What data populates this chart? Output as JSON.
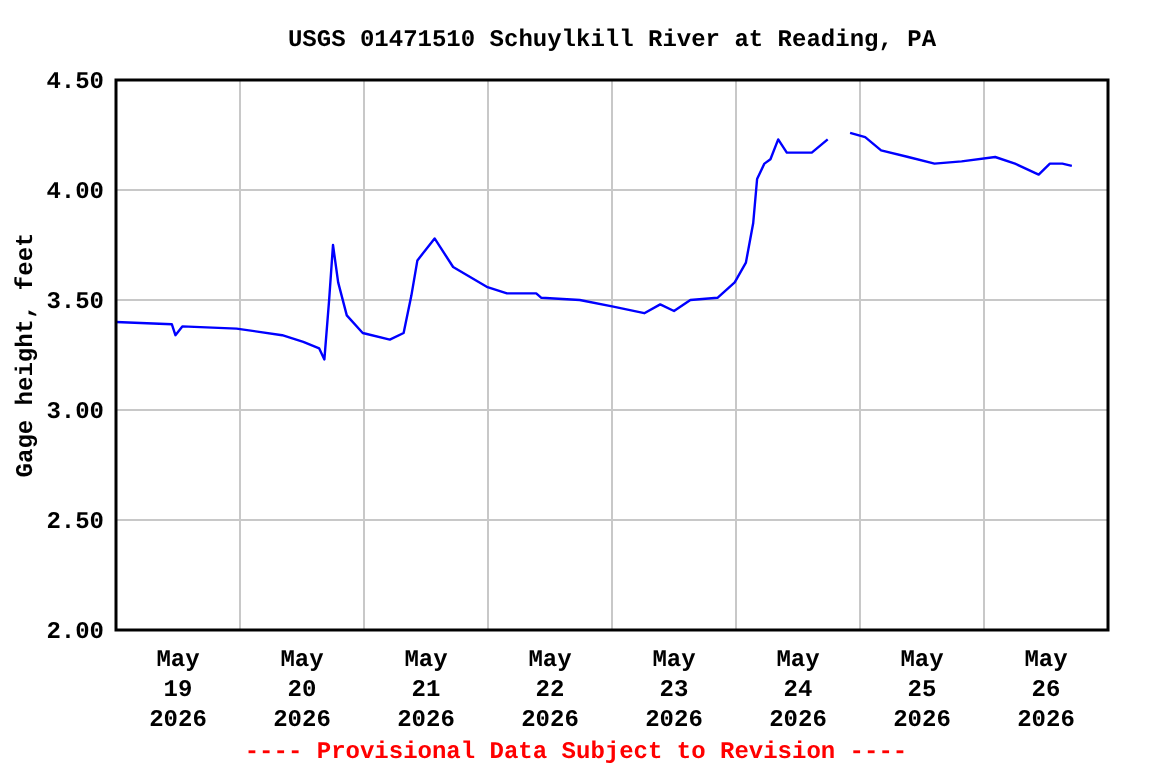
{
  "chart_data": {
    "type": "line",
    "title": "USGS 01471510 Schuylkill River at Reading, PA",
    "ylabel": "Gage height, feet",
    "annotations": [
      "---- Provisional Data Subject to Revision ----"
    ],
    "x": [
      "2026-05-19T00:00",
      "2026-05-19T10:48",
      "2026-05-19T11:30",
      "2026-05-19T12:50",
      "2026-05-19T23:20",
      "2026-05-20T08:10",
      "2026-05-20T12:15",
      "2026-05-20T15:20",
      "2026-05-20T16:20",
      "2026-05-20T17:15",
      "2026-05-20T18:00",
      "2026-05-20T19:00",
      "2026-05-20T20:40",
      "2026-05-20T23:45",
      "2026-05-21T05:00",
      "2026-05-21T07:40",
      "2026-05-21T09:10",
      "2026-05-21T10:20",
      "2026-05-21T13:40",
      "2026-05-21T17:15",
      "2026-05-21T23:45",
      "2026-05-22T03:40",
      "2026-05-22T09:20",
      "2026-05-22T10:20",
      "2026-05-22T17:45",
      "2026-05-23T00:15",
      "2026-05-23T06:15",
      "2026-05-23T09:20",
      "2026-05-23T12:00",
      "2026-05-23T15:10",
      "2026-05-23T20:25",
      "2026-05-23T23:45",
      "2026-05-24T01:55",
      "2026-05-24T03:20",
      "2026-05-24T04:05",
      "2026-05-24T05:30",
      "2026-05-24T06:40",
      "2026-05-24T08:10",
      "2026-05-24T09:50",
      "2026-05-24T12:30",
      "2026-05-24T14:40",
      "2026-05-24T17:45",
      "2026-05-24T20:00",
      "2026-05-24T22:05",
      "2026-05-25T01:00",
      "2026-05-25T04:05",
      "2026-05-25T09:20",
      "2026-05-25T14:25",
      "2026-05-25T19:40",
      "2026-05-26T02:10",
      "2026-05-26T06:00",
      "2026-05-26T10:35",
      "2026-05-26T12:45",
      "2026-05-26T15:10",
      "2026-05-26T17:00"
    ],
    "series": [
      {
        "color": "#0000ff",
        "values": [
          3.4,
          3.39,
          3.34,
          3.38,
          3.37,
          3.34,
          3.31,
          3.28,
          3.23,
          3.5,
          3.75,
          3.58,
          3.43,
          3.35,
          3.32,
          3.35,
          3.52,
          3.68,
          3.78,
          3.65,
          3.56,
          3.53,
          3.53,
          3.51,
          3.5,
          3.47,
          3.44,
          3.48,
          3.45,
          3.5,
          3.51,
          3.58,
          3.67,
          3.85,
          4.05,
          4.12,
          4.14,
          4.23,
          4.17,
          4.17,
          4.17,
          4.23,
          null,
          4.26,
          4.24,
          4.18,
          4.15,
          4.12,
          4.13,
          4.15,
          4.12,
          4.07,
          4.12,
          4.12,
          4.11
        ]
      }
    ],
    "xlim": [
      "2026-05-19T00:00",
      "2026-05-27T00:00"
    ],
    "xticks": [
      {
        "value": "2026-05-19T12:00",
        "label": "May\n19\n2026"
      },
      {
        "value": "2026-05-20T00:00",
        "label": null
      },
      {
        "value": "2026-05-20T12:00",
        "label": "May\n20\n2026"
      },
      {
        "value": "2026-05-21T00:00",
        "label": null
      },
      {
        "value": "2026-05-21T12:00",
        "label": "May\n21\n2026"
      },
      {
        "value": "2026-05-22T00:00",
        "label": null
      },
      {
        "value": "2026-05-22T12:00",
        "label": "May\n22\n2026"
      },
      {
        "value": "2026-05-23T00:00",
        "label": null
      },
      {
        "value": "2026-05-23T12:00",
        "label": "May\n23\n2026"
      },
      {
        "value": "2026-05-24T00:00",
        "label": null
      },
      {
        "value": "2026-05-24T12:00",
        "label": "May\n24\n2026"
      },
      {
        "value": "2026-05-25T00:00",
        "label": null
      },
      {
        "value": "2026-05-25T12:00",
        "label": "May\n25\n2026"
      },
      {
        "value": "2026-05-26T00:00",
        "label": null
      },
      {
        "value": "2026-05-26T12:00",
        "label": "May\n26\n2026"
      }
    ],
    "ylim": [
      2.0,
      4.5
    ],
    "yticks": [
      {
        "value": 2.0,
        "label": "2.00"
      },
      {
        "value": 2.5,
        "label": "2.50"
      },
      {
        "value": 3.0,
        "label": "3.00"
      },
      {
        "value": 3.5,
        "label": "3.50"
      },
      {
        "value": 4.0,
        "label": "4.00"
      },
      {
        "value": 4.5,
        "label": "4.50"
      }
    ],
    "grid": true,
    "marker": "none",
    "line_style": "solid"
  }
}
